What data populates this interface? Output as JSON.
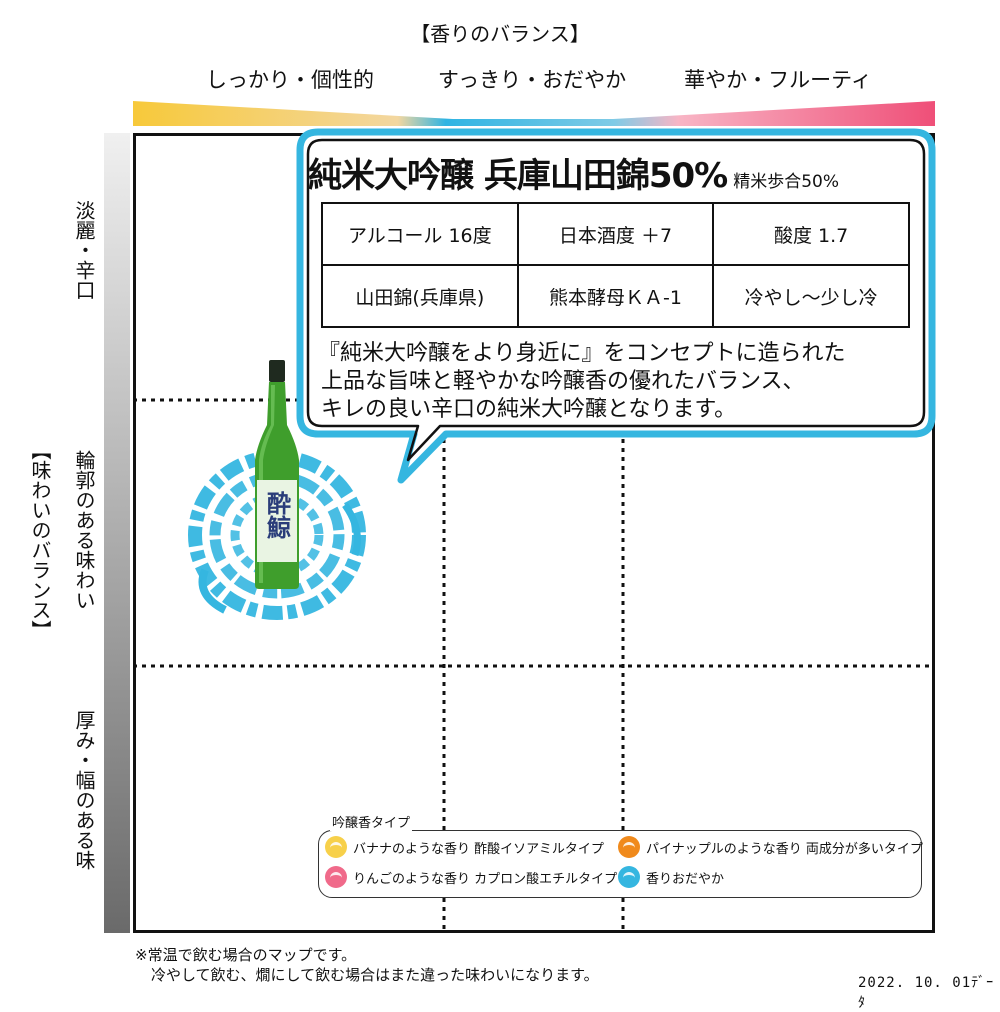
{
  "header": {
    "title": "【香りのバランス】",
    "columns": [
      "しっかり・個性的",
      "すっきり・おだやか",
      "華やか・フルーティ"
    ]
  },
  "side": {
    "title": "【味わいのバランス】",
    "rows": [
      "淡麗・辛口",
      "輪郭のある味わい",
      "厚み・幅のある味"
    ]
  },
  "product": {
    "name": "純米大吟醸 兵庫山田錦50%",
    "polish": "精米歩合50%",
    "specs": [
      [
        "アルコール 16度",
        "日本酒度 ＋7",
        "酸度 1.7"
      ],
      [
        "山田錦(兵庫県)",
        "熊本酵母ＫＡ-1",
        "冷やし～少し冷"
      ]
    ],
    "description": [
      "『純米大吟醸をより身近に』をコンセプトに造られた",
      "上品な旨味と軽やかな吟醸香の優れたバランス、",
      "キレの良い辛口の純米大吟醸となります。"
    ],
    "label_text": "酔鯨"
  },
  "legend": {
    "title": "吟醸香タイプ",
    "items": [
      {
        "label": "バナナのような香り 酢酸イソアミルタイプ",
        "color": "#f7d04a"
      },
      {
        "label": "パイナップルのような香り 両成分が多いタイプ",
        "color": "#f08a1c"
      },
      {
        "label": "りんごのような香り カプロン酸エチルタイプ",
        "color": "#f06a8a"
      },
      {
        "label": "香りおだやか",
        "color": "#35b6e0"
      }
    ]
  },
  "footnote": [
    "※常温で飲む場合のマップです。",
    "冷やして飲む、燗にして飲む場合はまた違った味わいになります。"
  ],
  "date": "2022. 10. 01ﾃﾞｰﾀ",
  "colors": {
    "yellow": "#f7d04a",
    "blue": "#35b6e0",
    "pink": "#f06a8a",
    "bottle_green": "#3f9e2c"
  }
}
